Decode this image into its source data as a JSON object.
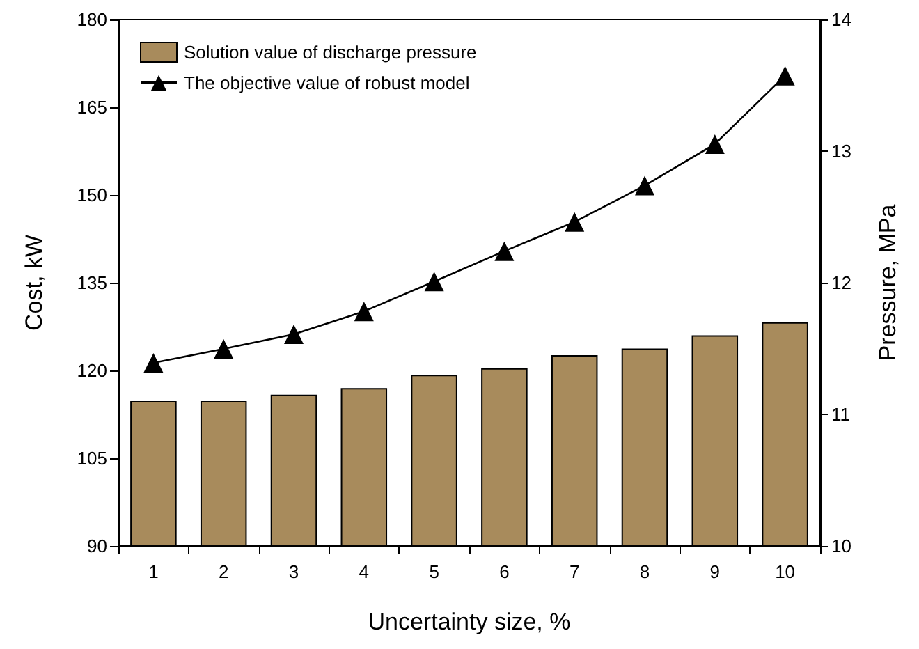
{
  "chart_data": {
    "type": "bar",
    "xlabel": "Uncertainty size, %",
    "ylabel": "Cost, kW",
    "y2label": "Pressure, MPa",
    "categories": [
      "1",
      "2",
      "3",
      "4",
      "5",
      "6",
      "7",
      "8",
      "9",
      "10"
    ],
    "series": [
      {
        "name": "Solution value of discharge pressure",
        "axis": "y2",
        "color": "#a88b5c",
        "values": [
          11.1,
          11.1,
          11.15,
          11.2,
          11.3,
          11.35,
          11.45,
          11.5,
          11.6,
          11.7
        ]
      },
      {
        "name": "The objective value of robust model",
        "type": "line",
        "axis": "y",
        "color": "#000000",
        "marker": "triangle",
        "line_style": "solid",
        "values": [
          121.3,
          123.7,
          126.2,
          130.1,
          135.2,
          140.4,
          145.4,
          151.6,
          158.7,
          170.4
        ]
      }
    ],
    "ylim": [
      90,
      180
    ],
    "yticks": [
      90,
      105,
      120,
      135,
      150,
      165,
      180
    ],
    "y2lim": [
      10,
      14
    ],
    "y2ticks": [
      10,
      11,
      12,
      13,
      14
    ],
    "grid": false,
    "legend": "top left"
  }
}
